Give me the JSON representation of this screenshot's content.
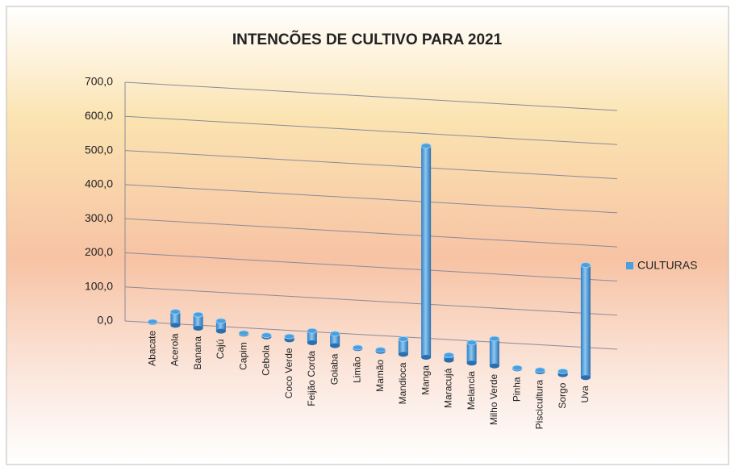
{
  "chart_data": {
    "type": "bar",
    "title": "INTENCÕES DE CULTIVO PARA 2021",
    "categories": [
      "Abacate",
      "Acerola",
      "Banana",
      "Cajú",
      "Capim",
      "Cebola",
      "Coco Verde",
      "Feijão Corda",
      "Goiaba",
      "Limão",
      "Mamão",
      "Mandioca",
      "Manga",
      "Maracujá",
      "Melancia",
      "Milho Verde",
      "Pinha",
      "Piscicultura",
      "Sorgo",
      "Uva"
    ],
    "series": [
      {
        "name": "CULTURAS",
        "color": "#4a9fe0",
        "values": [
          2,
          40,
          40,
          30,
          3,
          5,
          10,
          35,
          35,
          3,
          5,
          45,
          620,
          15,
          60,
          80,
          3,
          5,
          10,
          330
        ]
      }
    ],
    "ylim": [
      0,
      700
    ],
    "yticks": [
      {
        "value": 0,
        "label": "0,0"
      },
      {
        "value": 100,
        "label": "100,0"
      },
      {
        "value": 200,
        "label": "200,0"
      },
      {
        "value": 300,
        "label": "300,0"
      },
      {
        "value": 400,
        "label": "400,0"
      },
      {
        "value": 500,
        "label": "500,0"
      },
      {
        "value": 600,
        "label": "600,0"
      },
      {
        "value": 700,
        "label": "700,0"
      }
    ],
    "grid": true,
    "legend": "right"
  }
}
